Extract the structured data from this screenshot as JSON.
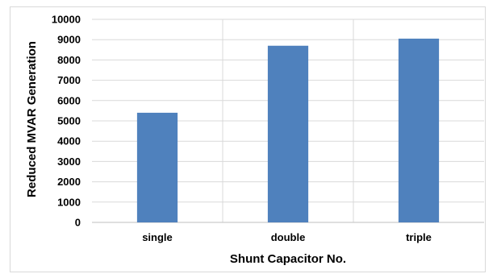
{
  "chart_data": {
    "type": "bar",
    "categories": [
      "single",
      "double",
      "triple"
    ],
    "values": [
      5400,
      8700,
      9050
    ],
    "xlabel": "Shunt Capacitor No.",
    "ylabel": "Reduced MVAR Generation",
    "ylim": [
      0,
      10000
    ],
    "yticks": [
      0,
      1000,
      2000,
      3000,
      4000,
      5000,
      6000,
      7000,
      8000,
      9000,
      10000
    ],
    "grid": true,
    "legend": "none",
    "bar_color": "#4f81bd",
    "grid_color": "#d9d9d9"
  }
}
